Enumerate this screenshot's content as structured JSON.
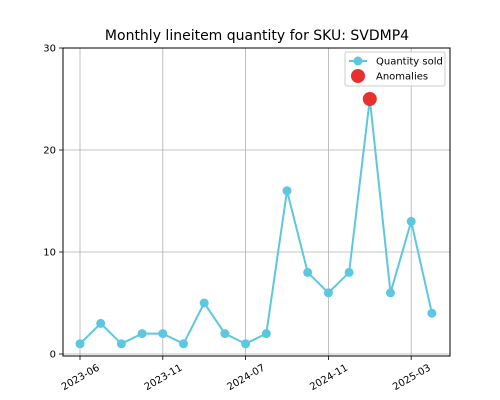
{
  "chart_data": {
    "type": "line",
    "title": "Monthly lineitem quantity for SKU: SVDMP4",
    "xlabel": "",
    "ylabel": "",
    "ylim": [
      0,
      30
    ],
    "yticks": [
      0,
      10,
      20,
      30
    ],
    "xticks": [
      "2023-06",
      "2023-11",
      "2024-07",
      "2024-11",
      "2025-03"
    ],
    "grid": true,
    "legend_position": "top-right",
    "series": [
      {
        "name": "Quantity sold",
        "color": "#5bc8e0",
        "values": [
          1,
          3,
          1,
          2,
          2,
          1,
          5,
          2,
          1,
          2,
          16,
          8,
          6,
          8,
          25,
          6,
          13,
          4
        ]
      },
      {
        "name": "Anomalies",
        "color": "#e8302e",
        "points": [
          {
            "index": 14,
            "value": 25
          }
        ]
      }
    ]
  }
}
